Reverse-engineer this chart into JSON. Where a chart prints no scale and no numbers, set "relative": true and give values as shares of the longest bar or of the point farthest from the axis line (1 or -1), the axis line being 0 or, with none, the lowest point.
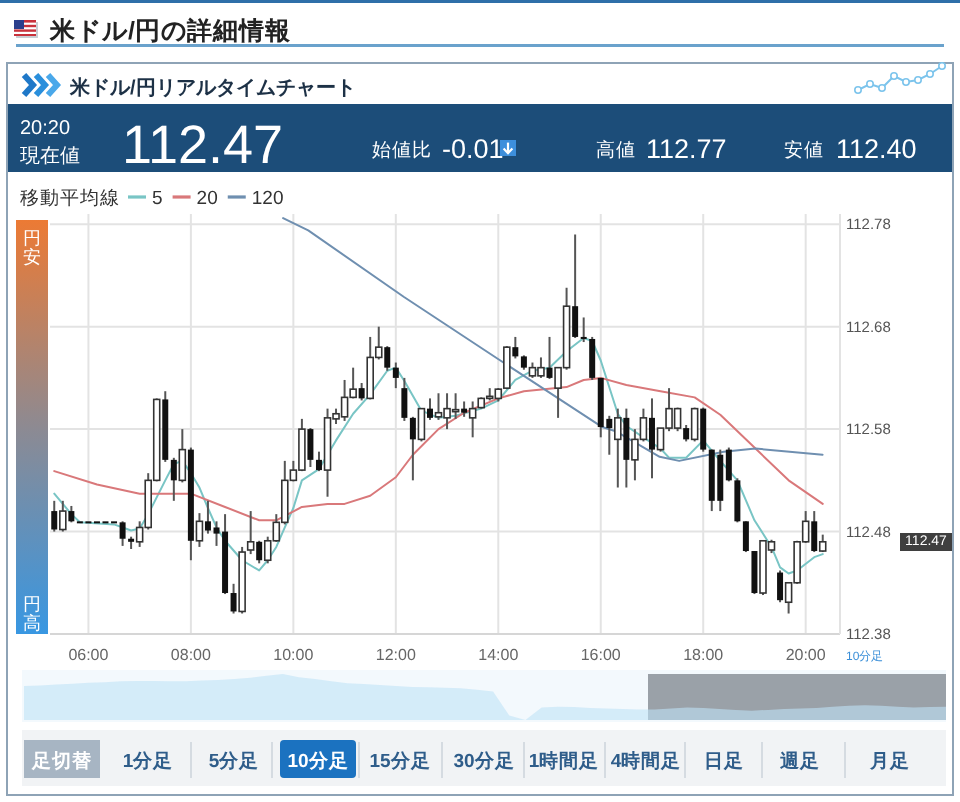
{
  "chart_data": [
    {
      "type": "candlestick",
      "title": "米ドル/円の詳細情報",
      "subtitle": "米ドル/円リアルタイムチャート",
      "legend_title": "移動平均線",
      "x": [
        5.333,
        5.5,
        5.667,
        5.833,
        6,
        6.167,
        6.333,
        6.5,
        6.667,
        6.833,
        7,
        7.167,
        7.333,
        7.5,
        7.667,
        7.833,
        8,
        8.167,
        8.333,
        8.5,
        8.667,
        8.833,
        9,
        9.167,
        9.333,
        9.5,
        9.667,
        9.833,
        10,
        10.167,
        10.333,
        10.5,
        10.667,
        10.833,
        11,
        11.167,
        11.333,
        11.5,
        11.667,
        11.833,
        12,
        12.167,
        12.333,
        12.5,
        12.667,
        12.833,
        13,
        13.167,
        13.333,
        13.5,
        13.667,
        13.833,
        14,
        14.167,
        14.333,
        14.5,
        14.667,
        14.833,
        15,
        15.167,
        15.333,
        15.5,
        15.667,
        15.833,
        16,
        16.167,
        16.333,
        16.5,
        16.667,
        16.833,
        17,
        17.167,
        17.333,
        17.5,
        17.667,
        17.833,
        18,
        18.167,
        18.333,
        18.5,
        18.667,
        18.833,
        19,
        19.167,
        19.333,
        19.5,
        19.667,
        19.833,
        20,
        20.167,
        20.333
      ],
      "ohlc": [
        [
          112.5,
          112.51,
          112.48,
          112.482
        ],
        [
          112.482,
          112.51,
          112.48,
          112.5
        ],
        [
          112.5,
          112.505,
          112.489,
          112.49
        ],
        [
          112.489,
          112.489,
          112.489,
          112.489
        ],
        [
          112.489,
          112.489,
          112.489,
          112.489
        ],
        [
          112.489,
          112.489,
          112.489,
          112.489
        ],
        [
          112.489,
          112.489,
          112.489,
          112.489
        ],
        [
          112.489,
          112.489,
          112.489,
          112.489
        ],
        [
          112.489,
          112.49,
          112.466,
          112.473
        ],
        [
          112.473,
          112.475,
          112.463,
          112.47
        ],
        [
          112.47,
          112.49,
          112.465,
          112.484
        ],
        [
          112.484,
          112.537,
          112.482,
          112.53
        ],
        [
          112.53,
          112.61,
          112.529,
          112.609
        ],
        [
          112.609,
          112.617,
          112.548,
          112.55
        ],
        [
          112.55,
          112.552,
          112.51,
          112.53
        ],
        [
          112.53,
          112.58,
          112.528,
          112.56
        ],
        [
          112.56,
          112.562,
          112.452,
          112.471
        ],
        [
          112.471,
          112.498,
          112.465,
          112.49
        ],
        [
          112.49,
          112.51,
          112.478,
          112.481
        ],
        [
          112.484,
          112.49,
          112.466,
          112.478
        ],
        [
          112.48,
          112.497,
          112.419,
          112.42
        ],
        [
          112.42,
          112.429,
          112.4,
          112.402
        ],
        [
          112.402,
          112.465,
          112.4,
          112.46
        ],
        [
          112.462,
          112.5,
          112.458,
          112.47
        ],
        [
          112.47,
          112.471,
          112.449,
          112.452
        ],
        [
          112.452,
          112.475,
          112.449,
          112.471
        ],
        [
          112.471,
          112.497,
          112.47,
          112.489
        ],
        [
          112.489,
          112.549,
          112.487,
          112.53
        ],
        [
          112.53,
          112.549,
          112.529,
          112.54
        ],
        [
          112.54,
          112.59,
          112.539,
          112.58
        ],
        [
          112.58,
          112.581,
          112.543,
          112.55
        ],
        [
          112.55,
          112.558,
          112.539,
          112.54
        ],
        [
          112.54,
          112.6,
          112.514,
          112.591
        ],
        [
          112.59,
          112.6,
          112.585,
          112.595
        ],
        [
          112.592,
          112.628,
          112.588,
          112.611
        ],
        [
          112.611,
          112.64,
          112.61,
          112.619
        ],
        [
          112.62,
          112.625,
          112.608,
          112.61
        ],
        [
          112.61,
          112.67,
          112.609,
          112.65
        ],
        [
          112.65,
          112.68,
          112.648,
          112.66
        ],
        [
          112.66,
          112.661,
          112.637,
          112.64
        ],
        [
          112.64,
          112.645,
          112.62,
          112.63
        ],
        [
          112.62,
          112.63,
          112.588,
          112.591
        ],
        [
          112.591,
          112.592,
          112.53,
          112.57
        ],
        [
          112.57,
          112.6,
          112.568,
          112.6
        ],
        [
          112.6,
          112.61,
          112.589,
          112.591
        ],
        [
          112.592,
          112.615,
          112.589,
          112.596
        ],
        [
          112.591,
          112.615,
          112.58,
          112.6
        ],
        [
          112.598,
          112.615,
          112.59,
          112.599
        ],
        [
          112.6,
          112.607,
          112.592,
          112.596
        ],
        [
          112.591,
          112.607,
          112.572,
          112.6
        ],
        [
          112.601,
          112.611,
          112.6,
          112.61
        ],
        [
          112.61,
          112.62,
          112.608,
          112.612
        ],
        [
          112.61,
          112.62,
          112.607,
          112.619
        ],
        [
          112.62,
          112.661,
          112.619,
          112.66
        ],
        [
          112.66,
          112.67,
          112.649,
          112.651
        ],
        [
          112.651,
          112.652,
          112.638,
          112.64
        ],
        [
          112.632,
          112.645,
          112.63,
          112.64
        ],
        [
          112.632,
          112.65,
          112.63,
          112.64
        ],
        [
          112.64,
          112.67,
          112.629,
          112.63
        ],
        [
          112.62,
          112.64,
          112.591,
          112.64
        ],
        [
          112.64,
          112.718,
          112.638,
          112.7
        ],
        [
          112.7,
          112.77,
          112.669,
          112.67
        ],
        [
          112.67,
          112.689,
          112.665,
          112.668
        ],
        [
          112.668,
          112.67,
          112.628,
          112.63
        ],
        [
          112.63,
          112.63,
          112.572,
          112.582
        ],
        [
          112.59,
          112.593,
          112.555,
          112.581
        ],
        [
          112.57,
          112.6,
          112.523,
          112.591
        ],
        [
          112.591,
          112.6,
          112.523,
          112.55
        ],
        [
          112.55,
          112.58,
          112.53,
          112.57
        ],
        [
          112.57,
          112.6,
          112.568,
          112.591
        ],
        [
          112.591,
          112.61,
          112.532,
          112.56
        ],
        [
          112.56,
          112.581,
          112.558,
          112.581
        ],
        [
          112.581,
          112.62,
          112.578,
          112.6
        ],
        [
          112.581,
          112.601,
          112.578,
          112.6
        ],
        [
          112.581,
          112.584,
          112.568,
          112.57
        ],
        [
          112.57,
          112.601,
          112.568,
          112.6
        ],
        [
          112.6,
          112.601,
          112.558,
          112.56
        ],
        [
          112.56,
          112.56,
          112.5,
          112.51
        ],
        [
          112.555,
          112.56,
          112.5,
          112.51
        ],
        [
          112.56,
          112.562,
          112.529,
          112.53
        ],
        [
          112.53,
          112.532,
          112.489,
          112.49
        ],
        [
          112.49,
          112.49,
          112.46,
          112.461
        ],
        [
          112.461,
          112.461,
          112.419,
          112.42
        ],
        [
          112.42,
          112.471,
          112.418,
          112.471
        ],
        [
          112.462,
          112.472,
          112.459,
          112.47
        ],
        [
          112.44,
          112.442,
          112.411,
          112.413
        ],
        [
          112.411,
          112.43,
          112.4,
          112.43
        ],
        [
          112.43,
          112.471,
          112.429,
          112.47
        ],
        [
          112.47,
          112.5,
          112.469,
          112.49
        ],
        [
          112.49,
          112.5,
          112.46,
          112.461
        ],
        [
          112.461,
          112.477,
          112.46,
          112.47
        ]
      ],
      "series": [
        {
          "name": "5",
          "type": "line",
          "color": "#79c5c5",
          "x": [
            5.333,
            5.667,
            5.833,
            6.5,
            6.833,
            7,
            7.167,
            7.5,
            7.667,
            7.833,
            8,
            8.167,
            8.333,
            8.5,
            8.667,
            9,
            9.333,
            9.5,
            9.667,
            9.833,
            10,
            10.167,
            10.5,
            10.833,
            11.167,
            11.5,
            11.833,
            12,
            12.167,
            12.5,
            12.833,
            13.167,
            13.667,
            14,
            14.333,
            14.667,
            15,
            15.333,
            15.667,
            15.833,
            16,
            16.333,
            16.5,
            16.833,
            17.167,
            17.333,
            17.667,
            18,
            18.333,
            18.667,
            19,
            19.333,
            19.5,
            19.667,
            19.833,
            20.167,
            20.333
          ],
          "values": [
            112.517,
            112.497,
            112.489,
            112.487,
            112.481,
            112.483,
            112.497,
            112.53,
            112.546,
            112.549,
            112.537,
            112.523,
            112.503,
            112.484,
            112.471,
            112.452,
            112.442,
            112.452,
            112.465,
            112.484,
            112.503,
            112.53,
            112.541,
            112.569,
            112.595,
            112.614,
            112.637,
            112.64,
            112.627,
            112.598,
            112.591,
            112.593,
            112.6,
            112.608,
            112.628,
            112.637,
            112.64,
            112.656,
            112.669,
            112.666,
            112.647,
            112.595,
            112.583,
            112.572,
            112.561,
            112.552,
            112.552,
            112.569,
            112.549,
            112.53,
            112.491,
            112.465,
            112.445,
            112.439,
            112.442,
            112.455,
            112.458
          ]
        },
        {
          "name": "20",
          "type": "line",
          "color": "#d9787a",
          "x": [
            5.333,
            6.167,
            7,
            8,
            8.667,
            9.333,
            9.667,
            10.167,
            10.667,
            11,
            11.5,
            12,
            12.333,
            12.833,
            13.333,
            14,
            14.5,
            15.333,
            15.667,
            16,
            16.5,
            17.167,
            17.833,
            18.333,
            19,
            19.667,
            20.333
          ],
          "values": [
            112.539,
            112.526,
            112.517,
            112.517,
            112.504,
            112.491,
            112.491,
            112.504,
            112.507,
            112.507,
            112.515,
            112.533,
            112.555,
            112.58,
            112.596,
            112.61,
            112.617,
            112.621,
            112.628,
            112.63,
            112.623,
            112.617,
            112.611,
            112.594,
            112.562,
            112.53,
            112.507
          ]
        },
        {
          "name": "120",
          "type": "line",
          "color": "#6f8fb0",
          "x": [
            9.8,
            10.29,
            12.16,
            14.04,
            16.03,
            16.29,
            17.15,
            17.53,
            18.4,
            19.02,
            20.33
          ],
          "values": [
            112.786,
            112.774,
            112.709,
            112.647,
            112.582,
            112.578,
            112.553,
            112.549,
            112.558,
            112.561,
            112.555
          ]
        }
      ],
      "xlim": [
        5.25,
        20.67
      ],
      "xticks": [
        {
          "value": 6,
          "label": "06:00"
        },
        {
          "value": 8,
          "label": "08:00"
        },
        {
          "value": 10,
          "label": "10:00"
        },
        {
          "value": 12,
          "label": "12:00"
        },
        {
          "value": 14,
          "label": "14:00"
        },
        {
          "value": 16,
          "label": "16:00"
        },
        {
          "value": 18,
          "label": "18:00"
        },
        {
          "value": 20,
          "label": "20:00"
        }
      ],
      "ylim": [
        112.38,
        112.79
      ],
      "yticks": [
        112.38,
        112.48,
        112.58,
        112.68,
        112.78
      ],
      "grid": true,
      "legend": "top left",
      "annotations": [
        "20:20",
        "現在値",
        "112.47",
        "始値比",
        "-0.01",
        "高値",
        "112.77",
        "安値",
        "112.40",
        "円安",
        "円高",
        "10分足",
        "112.47",
        "足切替",
        "1分足",
        "5分足",
        "10分足",
        "15分足",
        "30分足",
        "1時間足",
        "4時間足",
        "日足",
        "週足",
        "月足"
      ]
    },
    {
      "type": "area",
      "relative": true,
      "color": "#bfe3f7",
      "categories": [
        null,
        null,
        null,
        null,
        null,
        null,
        null,
        null,
        null,
        null,
        null,
        null,
        null,
        null,
        null,
        null,
        null,
        null,
        null,
        null,
        null,
        null,
        null,
        null,
        null,
        null,
        null,
        null,
        null,
        null,
        null,
        null,
        null,
        null,
        null,
        null,
        null,
        null,
        null,
        null,
        null,
        null,
        null,
        null,
        null,
        null,
        null,
        null,
        null,
        null,
        null,
        null,
        null,
        null,
        null,
        null,
        null,
        null
      ],
      "values": [
        0.74,
        0.75,
        0.77,
        0.79,
        0.81,
        0.82,
        0.84,
        0.85,
        0.85,
        0.84,
        0.84,
        0.86,
        0.87,
        0.89,
        0.92,
        0.96,
        1,
        0.93,
        0.89,
        0.84,
        0.8,
        0.78,
        0.76,
        0.74,
        0.72,
        0.71,
        0.7,
        0.69,
        0.66,
        0.62,
        0.1,
        0,
        0.27,
        0.29,
        0.28,
        0.26,
        0.25,
        0.24,
        0.23,
        0.23,
        0.25,
        0.27,
        0.26,
        0.24,
        0.22,
        0.2,
        0.22,
        0.24,
        0.25,
        0.26,
        0.29,
        0.31,
        0.32,
        0.31,
        0.29,
        0.27,
        0.28,
        0.29
      ]
    }
  ]
}
